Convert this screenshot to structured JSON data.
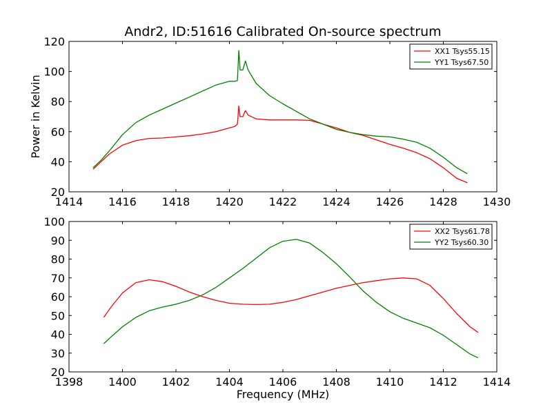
{
  "figure": {
    "title": "Andr2, ID:51616 Calibrated On-source spectrum",
    "colors": {
      "XX": "#ff0000",
      "YY": "#008000",
      "frame": "#000000",
      "background": "#ffffff"
    }
  },
  "chart_data": [
    {
      "type": "line",
      "title": "Andr2, ID:51616 Calibrated On-source spectrum",
      "xlabel": "",
      "ylabel": "Power in Kelvin",
      "xlim": [
        1414,
        1430
      ],
      "ylim": [
        20,
        120
      ],
      "xticks": [
        1414,
        1416,
        1418,
        1420,
        1422,
        1424,
        1426,
        1428,
        1430
      ],
      "yticks": [
        20,
        40,
        60,
        80,
        100,
        120
      ],
      "xtick_labels": [
        "1414",
        "1416",
        "1418",
        "1420",
        "1422",
        "1424",
        "1426",
        "1428",
        "1430"
      ],
      "ytick_labels": [
        "20",
        "40",
        "60",
        "80",
        "100",
        "120"
      ],
      "grid": false,
      "legend": "top-right",
      "series": [
        {
          "name": "XX1 Tsys55.15",
          "color": "#ff0000",
          "x": [
            1414.9,
            1415.2,
            1415.5,
            1416.0,
            1416.5,
            1417.0,
            1417.5,
            1418.0,
            1418.5,
            1419.0,
            1419.5,
            1420.0,
            1420.2,
            1420.3,
            1420.35,
            1420.4,
            1420.5,
            1420.6,
            1420.7,
            1421.0,
            1421.5,
            1422.0,
            1422.5,
            1423.0,
            1423.5,
            1424.0,
            1424.5,
            1425.0,
            1425.5,
            1426.0,
            1426.5,
            1427.0,
            1427.5,
            1428.0,
            1428.5,
            1428.9
          ],
          "values": [
            35,
            40,
            45,
            51,
            54,
            55.5,
            55.8,
            56.5,
            57.3,
            58.5,
            60,
            62.5,
            63.5,
            65,
            77,
            70,
            70,
            74,
            71,
            68.5,
            67.8,
            67.8,
            67.8,
            67.5,
            65,
            62.5,
            59.5,
            57.5,
            54.5,
            51.5,
            49,
            46,
            42,
            36,
            29,
            26
          ]
        },
        {
          "name": "YY1 Tsys67.50",
          "color": "#008000",
          "x": [
            1414.9,
            1415.2,
            1415.5,
            1416.0,
            1416.5,
            1417.0,
            1417.5,
            1418.0,
            1418.5,
            1419.0,
            1419.5,
            1420.0,
            1420.2,
            1420.3,
            1420.35,
            1420.4,
            1420.5,
            1420.6,
            1420.7,
            1421.0,
            1421.5,
            1422.0,
            1422.5,
            1423.0,
            1423.5,
            1424.0,
            1424.5,
            1425.0,
            1425.5,
            1426.0,
            1426.5,
            1427.0,
            1427.5,
            1428.0,
            1428.5,
            1428.9
          ],
          "values": [
            36,
            41,
            47,
            58,
            66,
            71,
            75,
            79,
            83,
            87,
            91,
            93.5,
            93.5,
            94,
            114,
            101,
            101,
            107,
            101,
            92,
            84,
            78.5,
            73.5,
            68.5,
            65,
            61.5,
            59.5,
            58,
            57,
            56.5,
            55,
            53,
            49,
            43,
            36,
            32
          ]
        }
      ]
    },
    {
      "type": "line",
      "title": "",
      "xlabel": "Frequency (MHz)",
      "ylabel": "",
      "xlim": [
        1398,
        1414
      ],
      "ylim": [
        20,
        100
      ],
      "xticks": [
        1398,
        1400,
        1402,
        1404,
        1406,
        1408,
        1410,
        1412,
        1414
      ],
      "yticks": [
        20,
        30,
        40,
        50,
        60,
        70,
        80,
        90,
        100
      ],
      "xtick_labels": [
        "1398",
        "1400",
        "1402",
        "1404",
        "1406",
        "1408",
        "1410",
        "1412",
        "1414"
      ],
      "ytick_labels": [
        "20",
        "30",
        "40",
        "50",
        "60",
        "70",
        "80",
        "90",
        "100"
      ],
      "grid": false,
      "legend": "top-right",
      "series": [
        {
          "name": "XX2 Tsys61.78",
          "color": "#ff0000",
          "x": [
            1399.3,
            1399.6,
            1400.0,
            1400.5,
            1401.0,
            1401.5,
            1402.0,
            1402.5,
            1403.0,
            1403.5,
            1404.0,
            1404.5,
            1405.0,
            1405.5,
            1406.0,
            1406.5,
            1407.0,
            1407.5,
            1408.0,
            1408.5,
            1409.0,
            1409.5,
            1410.0,
            1410.5,
            1411.0,
            1411.5,
            1412.0,
            1412.5,
            1413.0,
            1413.3
          ],
          "values": [
            49,
            55,
            62,
            67.5,
            69,
            68,
            65.5,
            62.5,
            60,
            58,
            56.5,
            56,
            55.8,
            56,
            57,
            58.5,
            60.5,
            62.5,
            64.5,
            66,
            67.5,
            68.5,
            69.5,
            70,
            69.5,
            66,
            59,
            51,
            44,
            41
          ]
        },
        {
          "name": "YY2 Tsys60.30",
          "color": "#008000",
          "x": [
            1399.3,
            1399.6,
            1400.0,
            1400.5,
            1401.0,
            1401.5,
            1402.0,
            1402.5,
            1403.0,
            1403.5,
            1404.0,
            1404.5,
            1405.0,
            1405.5,
            1406.0,
            1406.5,
            1407.0,
            1407.5,
            1408.0,
            1408.5,
            1409.0,
            1409.5,
            1410.0,
            1410.5,
            1411.0,
            1411.5,
            1412.0,
            1412.5,
            1413.0,
            1413.3
          ],
          "values": [
            35,
            39,
            44,
            49,
            52.5,
            54.5,
            56,
            58,
            61,
            65,
            70,
            75,
            80.5,
            86,
            89.5,
            90.5,
            88.5,
            83.5,
            77.5,
            70.5,
            63,
            57,
            52,
            48.5,
            46,
            43.5,
            39.5,
            34.5,
            29.5,
            27.5
          ]
        }
      ]
    }
  ]
}
